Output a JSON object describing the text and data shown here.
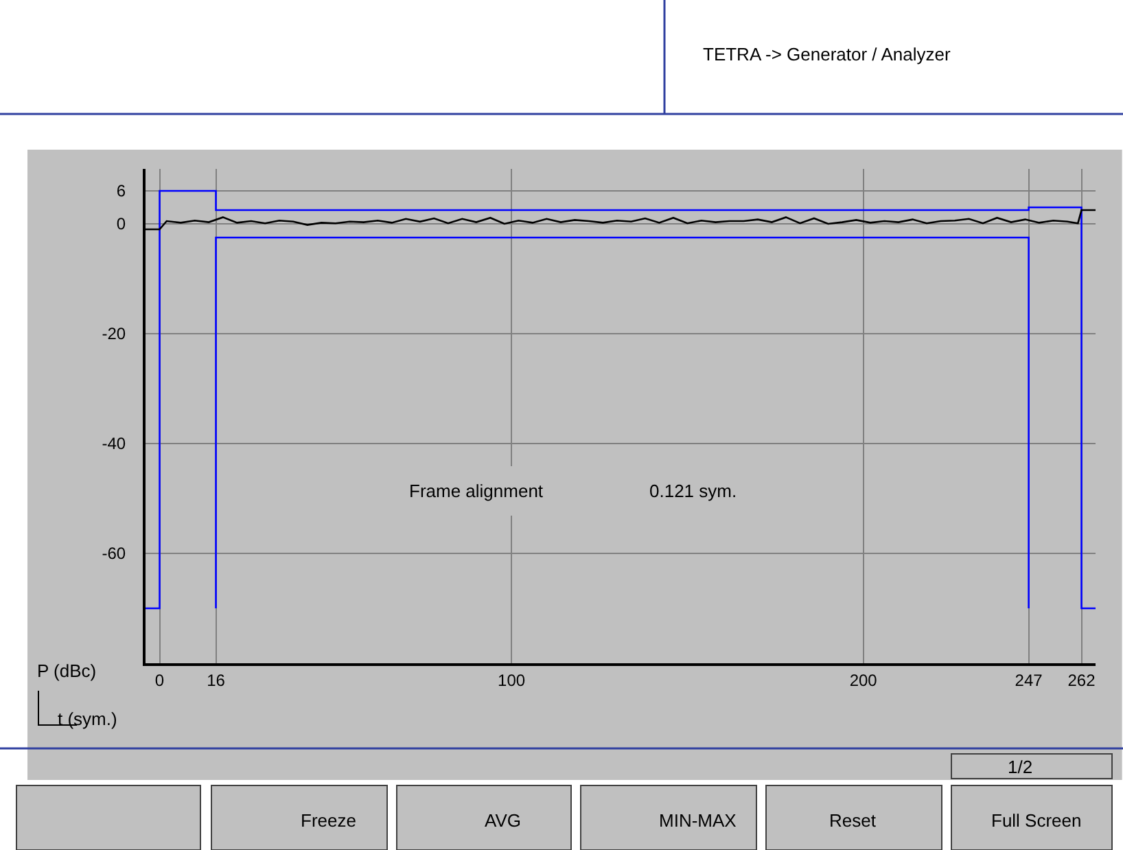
{
  "chart_data": {
    "type": "line",
    "title": "TETRA -> Generator / Analyzer",
    "xlabel": "t (sym.)",
    "ylabel": "P (dBc)",
    "xlim": [
      -4,
      266
    ],
    "ylim": [
      -80,
      10
    ],
    "xticks": [
      0,
      16,
      100,
      200,
      247,
      262
    ],
    "yticks": [
      6,
      0,
      -20,
      -40,
      -60
    ],
    "grid": true,
    "marker": "none",
    "line_style": "solid",
    "series": [
      {
        "color": "#0000ff",
        "x": [
          -4,
          0,
          0,
          16,
          16,
          247,
          247,
          262,
          262,
          266
        ],
        "values": [
          -70,
          -70,
          6,
          6,
          2.5,
          2.5,
          3,
          3,
          -70,
          -70
        ]
      },
      {
        "color": "#0000ff",
        "x": [
          16,
          16,
          247,
          247
        ],
        "values": [
          -70,
          -2.5,
          -2.5,
          -70
        ]
      },
      {
        "color": "#000000",
        "x": [
          -4,
          0,
          2,
          6,
          10,
          14,
          18,
          22,
          26,
          30,
          34,
          38,
          42,
          46,
          50,
          54,
          58,
          62,
          66,
          70,
          74,
          78,
          82,
          86,
          90,
          94,
          98,
          102,
          106,
          110,
          114,
          118,
          122,
          126,
          130,
          134,
          138,
          142,
          146,
          150,
          154,
          158,
          162,
          166,
          170,
          174,
          178,
          182,
          186,
          190,
          194,
          198,
          202,
          206,
          210,
          214,
          218,
          222,
          226,
          230,
          234,
          238,
          242,
          246,
          250,
          254,
          258,
          261,
          262,
          266
        ],
        "values": [
          -1,
          -1,
          0.5,
          0.2,
          0.6,
          0.3,
          1.2,
          0.2,
          0.5,
          0.1,
          0.6,
          0.4,
          -0.2,
          0.2,
          0.1,
          0.4,
          0.3,
          0.6,
          0.2,
          0.9,
          0.4,
          1.0,
          0.1,
          0.9,
          0.3,
          1.1,
          0.0,
          0.6,
          0.2,
          0.9,
          0.3,
          0.7,
          0.5,
          0.2,
          0.6,
          0.4,
          1.0,
          0.2,
          1.1,
          0.1,
          0.6,
          0.3,
          0.5,
          0.5,
          0.8,
          0.3,
          1.2,
          0.1,
          1.0,
          0.0,
          0.3,
          0.7,
          0.2,
          0.5,
          0.3,
          0.8,
          0.1,
          0.5,
          0.6,
          0.9,
          0.1,
          1.1,
          0.3,
          0.8,
          0.2,
          0.6,
          0.4,
          0.1,
          2.5,
          2.5
        ]
      }
    ],
    "annotations": [
      "Frame alignment",
      "0.121 sym.",
      "Freeze",
      "AVG",
      "MIN-MAX",
      "Reset",
      "Full Screen",
      "1/2"
    ]
  }
}
